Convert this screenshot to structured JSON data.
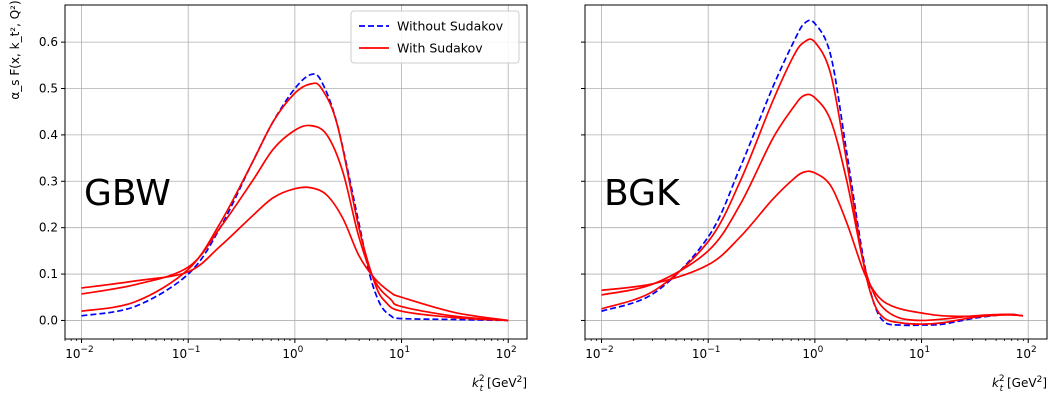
{
  "chart_data": [
    {
      "type": "line",
      "panel_label": "GBW",
      "xscale": "log",
      "xlim": [
        0.007,
        150
      ],
      "ylim": [
        -0.04,
        0.68
      ],
      "grid": true,
      "xlabel_main": "k",
      "xlabel_sub": "t",
      "xlabel_sup": "2",
      "xlabel_unit": " [GeV",
      "xlabel_unit_sup": "2",
      "xlabel_close": "]",
      "ylabel": "α_s F(x, k_t², Q²)",
      "yticks": [
        0.0,
        0.1,
        0.2,
        0.3,
        0.4,
        0.5,
        0.6
      ],
      "ytick_labels": [
        "0.0",
        "0.1",
        "0.2",
        "0.3",
        "0.4",
        "0.5",
        "0.6"
      ],
      "xtick_exponents": [
        "-2",
        "-1",
        "0",
        "1",
        "2"
      ],
      "xtick_base": "10",
      "legend": {
        "placement": "top-right",
        "entries": [
          {
            "label": "Without Sudakov",
            "color": "#0000ff",
            "style": "dashed"
          },
          {
            "label": "With Sudakov",
            "color": "#ff0000",
            "style": "solid"
          }
        ]
      },
      "series": [
        {
          "color": "#0000ff",
          "style": "dashed",
          "points": [
            [
              -2,
              0.01
            ],
            [
              -1.5,
              0.03
            ],
            [
              -1,
              0.1
            ],
            [
              -0.7,
              0.2
            ],
            [
              -0.4,
              0.34
            ],
            [
              -0.2,
              0.43
            ],
            [
              0,
              0.5
            ],
            [
              0.15,
              0.53
            ],
            [
              0.25,
              0.515
            ],
            [
              0.4,
              0.42
            ],
            [
              0.6,
              0.21
            ],
            [
              0.7,
              0.1
            ],
            [
              0.8,
              0.035
            ],
            [
              0.9,
              0.01
            ],
            [
              1,
              0.004
            ],
            [
              1.5,
              0.002
            ],
            [
              2,
              0.0
            ]
          ]
        },
        {
          "color": "#ff0000",
          "style": "solid",
          "points": [
            [
              -2,
              0.02
            ],
            [
              -1.5,
              0.04
            ],
            [
              -1,
              0.11
            ],
            [
              -0.7,
              0.21
            ],
            [
              -0.4,
              0.34
            ],
            [
              -0.2,
              0.43
            ],
            [
              0,
              0.49
            ],
            [
              0.15,
              0.51
            ],
            [
              0.25,
              0.5
            ],
            [
              0.4,
              0.42
            ],
            [
              0.6,
              0.2
            ],
            [
              0.75,
              0.08
            ],
            [
              0.85,
              0.04
            ],
            [
              1,
              0.02
            ],
            [
              1.5,
              0.006
            ],
            [
              2,
              0.0
            ]
          ]
        },
        {
          "color": "#ff0000",
          "style": "solid",
          "points": [
            [
              -2,
              0.057
            ],
            [
              -1.5,
              0.077
            ],
            [
              -1,
              0.115
            ],
            [
              -0.7,
              0.2
            ],
            [
              -0.4,
              0.3
            ],
            [
              -0.2,
              0.37
            ],
            [
              0,
              0.41
            ],
            [
              0.15,
              0.42
            ],
            [
              0.3,
              0.4
            ],
            [
              0.45,
              0.32
            ],
            [
              0.6,
              0.18
            ],
            [
              0.75,
              0.085
            ],
            [
              0.9,
              0.045
            ],
            [
              1,
              0.03
            ],
            [
              1.5,
              0.009
            ],
            [
              2,
              0.0
            ]
          ]
        },
        {
          "color": "#ff0000",
          "style": "solid",
          "points": [
            [
              -2,
              0.07
            ],
            [
              -1.5,
              0.085
            ],
            [
              -1,
              0.105
            ],
            [
              -0.7,
              0.16
            ],
            [
              -0.4,
              0.225
            ],
            [
              -0.2,
              0.265
            ],
            [
              0,
              0.284
            ],
            [
              0.15,
              0.286
            ],
            [
              0.3,
              0.27
            ],
            [
              0.45,
              0.22
            ],
            [
              0.6,
              0.14
            ],
            [
              0.75,
              0.09
            ],
            [
              0.9,
              0.06
            ],
            [
              1,
              0.05
            ],
            [
              1.5,
              0.017
            ],
            [
              2,
              0.0
            ]
          ]
        }
      ]
    },
    {
      "type": "line",
      "panel_label": "BGK",
      "xscale": "log",
      "xlim": [
        0.007,
        150
      ],
      "ylim": [
        -0.04,
        0.68
      ],
      "grid": true,
      "xlabel_main": "k",
      "xlabel_sub": "t",
      "xlabel_sup": "2",
      "xlabel_unit": " [GeV",
      "xlabel_unit_sup": "2",
      "xlabel_close": "]",
      "yticks": [
        0.0,
        0.1,
        0.2,
        0.3,
        0.4,
        0.5,
        0.6
      ],
      "ytick_labels": [],
      "xtick_exponents": [
        "-2",
        "-1",
        "0",
        "1",
        "2"
      ],
      "xtick_base": "10",
      "series": [
        {
          "color": "#0000ff",
          "style": "dashed",
          "points": [
            [
              -2,
              0.02
            ],
            [
              -1.5,
              0.06
            ],
            [
              -1,
              0.18
            ],
            [
              -0.7,
              0.33
            ],
            [
              -0.4,
              0.5
            ],
            [
              -0.2,
              0.6
            ],
            [
              -0.1,
              0.64
            ],
            [
              0,
              0.64
            ],
            [
              0.15,
              0.57
            ],
            [
              0.3,
              0.36
            ],
            [
              0.45,
              0.14
            ],
            [
              0.55,
              0.04
            ],
            [
              0.65,
              -0.003
            ],
            [
              0.8,
              -0.01
            ],
            [
              1,
              -0.01
            ],
            [
              1.2,
              -0.008
            ],
            [
              1.5,
              0.005
            ],
            [
              1.8,
              0.013
            ],
            [
              1.95,
              0.01
            ]
          ]
        },
        {
          "color": "#ff0000",
          "style": "solid",
          "points": [
            [
              -2,
              0.025
            ],
            [
              -1.5,
              0.065
            ],
            [
              -1,
              0.17
            ],
            [
              -0.7,
              0.3
            ],
            [
              -0.4,
              0.47
            ],
            [
              -0.2,
              0.57
            ],
            [
              -0.1,
              0.6
            ],
            [
              0,
              0.6
            ],
            [
              0.15,
              0.53
            ],
            [
              0.3,
              0.34
            ],
            [
              0.45,
              0.13
            ],
            [
              0.55,
              0.04
            ],
            [
              0.65,
              0.005
            ],
            [
              0.8,
              -0.005
            ],
            [
              1,
              -0.008
            ],
            [
              1.2,
              -0.005
            ],
            [
              1.5,
              0.007
            ],
            [
              1.8,
              0.013
            ],
            [
              1.95,
              0.01
            ]
          ]
        },
        {
          "color": "#ff0000",
          "style": "solid",
          "points": [
            [
              -2,
              0.055
            ],
            [
              -1.5,
              0.08
            ],
            [
              -1,
              0.15
            ],
            [
              -0.7,
              0.25
            ],
            [
              -0.4,
              0.39
            ],
            [
              -0.2,
              0.46
            ],
            [
              -0.1,
              0.485
            ],
            [
              0,
              0.48
            ],
            [
              0.15,
              0.43
            ],
            [
              0.3,
              0.3
            ],
            [
              0.45,
              0.13
            ],
            [
              0.55,
              0.06
            ],
            [
              0.65,
              0.025
            ],
            [
              0.8,
              0.005
            ],
            [
              1,
              0.0
            ],
            [
              1.2,
              0.003
            ],
            [
              1.5,
              0.01
            ],
            [
              1.8,
              0.013
            ],
            [
              1.95,
              0.01
            ]
          ]
        },
        {
          "color": "#ff0000",
          "style": "solid",
          "points": [
            [
              -2,
              0.065
            ],
            [
              -1.5,
              0.08
            ],
            [
              -1,
              0.12
            ],
            [
              -0.7,
              0.18
            ],
            [
              -0.4,
              0.26
            ],
            [
              -0.2,
              0.305
            ],
            [
              -0.1,
              0.32
            ],
            [
              0,
              0.318
            ],
            [
              0.15,
              0.29
            ],
            [
              0.3,
              0.21
            ],
            [
              0.45,
              0.11
            ],
            [
              0.55,
              0.065
            ],
            [
              0.65,
              0.04
            ],
            [
              0.8,
              0.025
            ],
            [
              1,
              0.016
            ],
            [
              1.2,
              0.01
            ],
            [
              1.5,
              0.009
            ],
            [
              1.8,
              0.012
            ],
            [
              1.95,
              0.01
            ]
          ]
        }
      ]
    }
  ]
}
